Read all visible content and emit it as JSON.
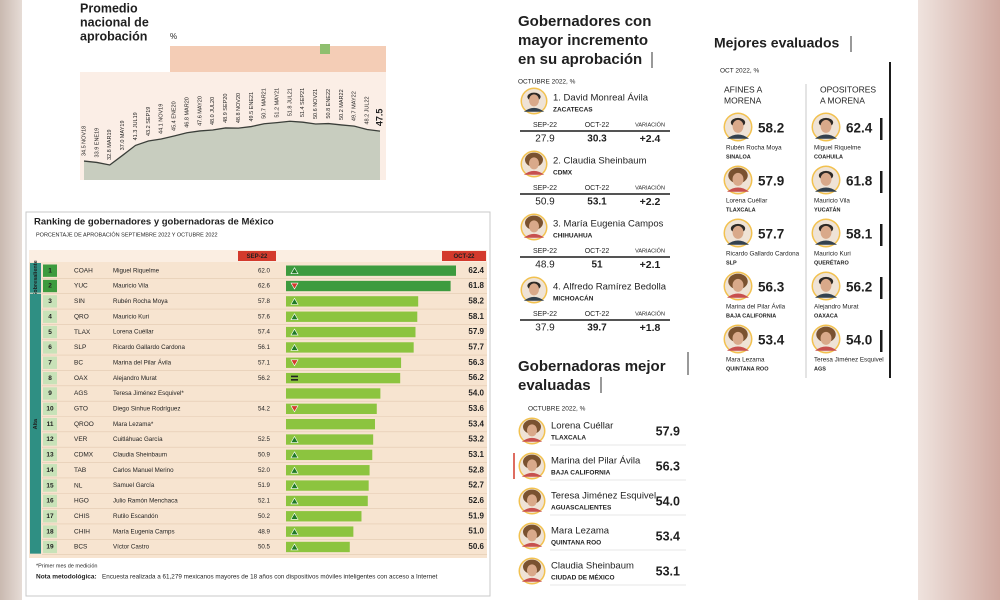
{
  "trend": {
    "title_lines": [
      "Promedio",
      "nacional de",
      "aprobación"
    ],
    "unit": "%",
    "labels": [
      "34.5 NOV18",
      "33.9 ENE19",
      "32.8 MAR19",
      "37.0 MAY19",
      "41.3 JUL19",
      "43.2 SEP19",
      "44.1 NOV19",
      "45.4 ENE20",
      "46.8 MAR20",
      "47.6 MAY20",
      "48.0 JUL20",
      "48.9 SEP20",
      "48.8 NOV20",
      "49.5 ENE21",
      "50.7 MAR21",
      "51.2 MAY21",
      "51.8 JUL21",
      "51.4 SEP21",
      "50.6 NOV21",
      "50.8 ENE22",
      "50.2 MAR22",
      "49.7 MAY22",
      "48.2 JUL22",
      "47.5"
    ],
    "values": [
      34.5,
      33.9,
      32.8,
      37.0,
      41.3,
      43.2,
      44.1,
      45.4,
      46.8,
      47.6,
      48.0,
      48.9,
      48.8,
      49.5,
      50.7,
      51.2,
      51.8,
      51.4,
      50.6,
      50.8,
      50.2,
      49.7,
      48.2,
      47.5
    ]
  },
  "ranking": {
    "title": "Ranking de gobernadores y gobernadoras de México",
    "subtitle": "PORCENTAJE DE APROBACIÓN SEPTIEMBRE 2022 Y OCTUBRE 2022",
    "sep_header": "SEP-22",
    "oct_header": "OCT-22",
    "groups": [
      {
        "label": "Sobresaliente",
        "color": "#3d9b3f",
        "rows": [
          {
            "rank": "1",
            "state": "COAH",
            "name": "Miguel Riquelme",
            "sep": "62.0",
            "oct": "62.4",
            "trend": "up"
          },
          {
            "rank": "2",
            "state": "YUC",
            "name": "Mauricio Vila",
            "sep": "62.6",
            "oct": "61.8",
            "trend": "down"
          }
        ]
      },
      {
        "label": "Alta",
        "color": "#8cc43f",
        "rows": [
          {
            "rank": "3",
            "state": "SIN",
            "name": "Rubén Rocha Moya",
            "sep": "57.8",
            "oct": "58.2",
            "trend": "up"
          },
          {
            "rank": "4",
            "state": "QRO",
            "name": "Mauricio Kuri",
            "sep": "57.6",
            "oct": "58.1",
            "trend": "up"
          },
          {
            "rank": "5",
            "state": "TLAX",
            "name": "Lorena Cuéllar",
            "sep": "57.4",
            "oct": "57.9",
            "trend": "up"
          },
          {
            "rank": "6",
            "state": "SLP",
            "name": "Ricardo Gallardo Cardona",
            "sep": "56.1",
            "oct": "57.7",
            "trend": "up"
          },
          {
            "rank": "7",
            "state": "BC",
            "name": "Marina del Pilar Ávila",
            "sep": "57.1",
            "oct": "56.3",
            "trend": "down"
          },
          {
            "rank": "8",
            "state": "OAX",
            "name": "Alejandro Murat",
            "sep": "56.2",
            "oct": "56.2",
            "trend": "equal"
          },
          {
            "rank": "9",
            "state": "AGS",
            "name": "Teresa Jiménez Esquivel*",
            "oct": "54.0"
          },
          {
            "rank": "10",
            "state": "GTO",
            "name": "Diego Sinhue Rodríguez",
            "sep": "54.2",
            "oct": "53.6",
            "trend": "down"
          },
          {
            "rank": "11",
            "state": "QROO",
            "name": "Mara Lezama*",
            "oct": "53.4"
          },
          {
            "rank": "12",
            "state": "VER",
            "name": "Cuitláhuac García",
            "sep": "52.5",
            "oct": "53.2",
            "trend": "up"
          },
          {
            "rank": "13",
            "state": "CDMX",
            "name": "Claudia Sheinbaum",
            "sep": "50.9",
            "oct": "53.1",
            "trend": "up"
          },
          {
            "rank": "14",
            "state": "TAB",
            "name": "Carlos Manuel Merino",
            "sep": "52.0",
            "oct": "52.8",
            "trend": "up"
          },
          {
            "rank": "15",
            "state": "NL",
            "name": "Samuel García",
            "sep": "51.9",
            "oct": "52.7",
            "trend": "up"
          },
          {
            "rank": "16",
            "state": "HGO",
            "name": "Julio Ramón Menchaca",
            "sep": "52.1",
            "oct": "52.6",
            "trend": "up"
          },
          {
            "rank": "17",
            "state": "CHIS",
            "name": "Rutilo Escandón",
            "sep": "50.2",
            "oct": "51.9",
            "trend": "up"
          },
          {
            "rank": "18",
            "state": "CHIH",
            "name": "María Eugenia Camps",
            "sep": "48.9",
            "oct": "51.0",
            "trend": "up"
          },
          {
            "rank": "19",
            "state": "BCS",
            "name": "Víctor Castro",
            "sep": "50.5",
            "oct": "50.6",
            "trend": "up"
          }
        ]
      }
    ],
    "footnote": "*Primer mes de medición",
    "note_label": "Nota metodológica:",
    "note": "Encuesta realizada a 61,279 mexicanos mayores de 18 años con dispositivos móviles inteligentes con acceso a Internet"
  },
  "increase": {
    "title_lines": [
      "Gobernadores con",
      "mayor incremento",
      "en su aprobación"
    ],
    "subtitle": "OCTUBRE 2022, %",
    "headers": [
      "SEP-22",
      "OCT-22",
      "VARIACIÓN"
    ],
    "entries": [
      {
        "name": "1. David Monreal Ávila",
        "state": "ZACATECAS",
        "sep": "27.9",
        "oct": "30.3",
        "change": "+2.4"
      },
      {
        "name": "2. Claudia Sheinbaum",
        "state": "CDMX",
        "sep": "50.9",
        "oct": "53.1",
        "change": "+2.2"
      },
      {
        "name": "3. María Eugenia Campos",
        "state": "CHIHUAHUA",
        "sep": "48.9",
        "oct": "51",
        "change": "+2.1"
      },
      {
        "name": "4. Alfredo Ramírez Bedolla",
        "state": "MICHOACÁN",
        "sep": "37.9",
        "oct": "39.7",
        "change": "+1.8"
      }
    ]
  },
  "women": {
    "title_lines": [
      "Gobernadoras mejor",
      "evaluadas"
    ],
    "subtitle": "OCTUBRE 2022, %",
    "entries": [
      {
        "name": "Lorena Cuéllar",
        "state": "TLAXCALA",
        "value": "57.9"
      },
      {
        "name": "Marina del Pilar Ávila",
        "state": "BAJA CALIFORNIA",
        "value": "56.3"
      },
      {
        "name": "Teresa Jiménez Esquivel",
        "state": "AGUASCALIENTES",
        "value": "54.0"
      },
      {
        "name": "Mara Lezama",
        "state": "QUINTANA ROO",
        "value": "53.4"
      },
      {
        "name": "Claudia Sheinbaum",
        "state": "CIUDAD DE MÉXICO",
        "value": "53.1"
      }
    ]
  },
  "best": {
    "title": "Mejores evaluados",
    "subtitle": "OCT 2022, %",
    "columns": [
      {
        "header_lines": [
          "AFINES A",
          "MORENA"
        ],
        "entries": [
          {
            "name": "Rubén Rocha Moya",
            "state": "SINALOA",
            "value": "58.2"
          },
          {
            "name": "Lorena Cuéllar",
            "state": "TLAXCALA",
            "value": "57.9"
          },
          {
            "name": "Ricardo Gallardo Cardona",
            "state": "SLP",
            "value": "57.7"
          },
          {
            "name": "Marina del Pilar Ávila",
            "state": "BAJA CALIFORNIA",
            "value": "56.3"
          },
          {
            "name": "Mara Lezama",
            "state": "QUINTANA ROO",
            "value": "53.4"
          }
        ]
      },
      {
        "header_lines": [
          "OPOSITORES",
          "A MORENA"
        ],
        "entries": [
          {
            "name": "Miguel Riquelme",
            "state": "COAHUILA",
            "value": "62.4"
          },
          {
            "name": "Mauricio Vila",
            "state": "YUCATÁN",
            "value": "61.8"
          },
          {
            "name": "Mauricio Kuri",
            "state": "QUERÉTARO",
            "value": "58.1"
          },
          {
            "name": "Alejandro Murat",
            "state": "OAXACA",
            "value": "56.2"
          },
          {
            "name": "Teresa Jiménez Esquivel",
            "state": "AGS",
            "value": "54.0"
          }
        ]
      }
    ]
  }
}
